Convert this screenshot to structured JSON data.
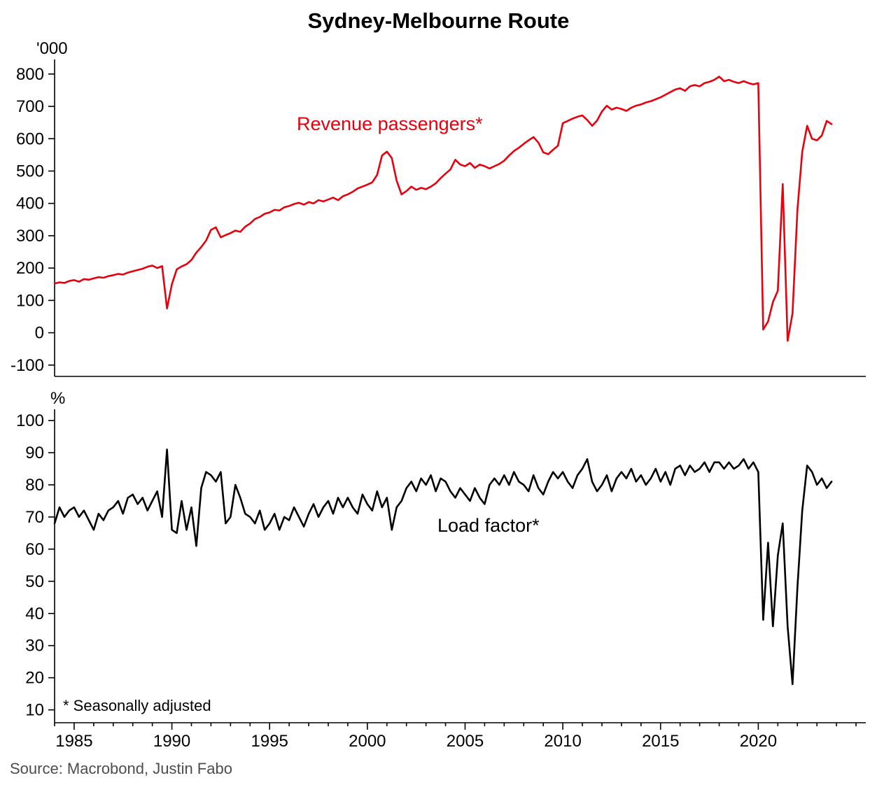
{
  "title": "Sydney-Melbourne Route",
  "footnote": "* Seasonally adjusted",
  "source": "Source: Macrobond, Justin Fabo",
  "colors": {
    "passengers_line": "#e8000d",
    "load_factor_line": "#000000",
    "axis": "#000000",
    "source_text": "#4d4d4d"
  },
  "x_axis": {
    "range": [
      1984,
      2025.5
    ],
    "major_ticks": [
      1985,
      1990,
      1995,
      2000,
      2005,
      2010,
      2015,
      2020
    ],
    "minor_tick_step": 1
  },
  "chart_data": [
    {
      "type": "line",
      "series_label": "Revenue passengers*",
      "ylabel": "'000",
      "color": "#e8000d",
      "ylim": [
        -100,
        800
      ],
      "yticks": [
        800,
        700,
        600,
        500,
        400,
        300,
        200,
        100,
        0,
        -100
      ],
      "x_start": 1984,
      "x_step": 0.25,
      "values": [
        152,
        156,
        154,
        160,
        163,
        158,
        166,
        164,
        168,
        172,
        170,
        175,
        178,
        182,
        180,
        186,
        190,
        194,
        198,
        204,
        208,
        200,
        206,
        75,
        150,
        196,
        205,
        212,
        225,
        248,
        265,
        285,
        318,
        326,
        295,
        302,
        308,
        316,
        312,
        328,
        338,
        352,
        358,
        368,
        372,
        380,
        378,
        388,
        392,
        398,
        402,
        396,
        404,
        400,
        410,
        406,
        412,
        418,
        410,
        422,
        428,
        436,
        446,
        452,
        458,
        465,
        488,
        548,
        560,
        540,
        470,
        428,
        438,
        452,
        442,
        448,
        444,
        452,
        462,
        478,
        492,
        505,
        535,
        520,
        515,
        525,
        510,
        520,
        515,
        508,
        515,
        522,
        532,
        548,
        562,
        572,
        584,
        595,
        605,
        588,
        558,
        552,
        566,
        578,
        648,
        655,
        662,
        668,
        672,
        658,
        640,
        656,
        684,
        702,
        690,
        696,
        692,
        686,
        696,
        702,
        706,
        712,
        716,
        722,
        728,
        736,
        744,
        752,
        756,
        748,
        762,
        766,
        762,
        772,
        776,
        782,
        792,
        778,
        782,
        776,
        772,
        778,
        772,
        768,
        772,
        10,
        35,
        95,
        130,
        460,
        -25,
        60,
        380,
        560,
        640,
        600,
        595,
        610,
        655,
        645
      ]
    },
    {
      "type": "line",
      "series_label": "Load factor*",
      "ylabel": "%",
      "color": "#000000",
      "ylim": [
        10,
        100
      ],
      "yticks": [
        100,
        90,
        80,
        70,
        60,
        50,
        40,
        30,
        20,
        10
      ],
      "x_start": 1984,
      "x_step": 0.25,
      "values": [
        68,
        73,
        70,
        72,
        73,
        70,
        72,
        69,
        66,
        71,
        69,
        72,
        73,
        75,
        71,
        76,
        77,
        74,
        76,
        72,
        75,
        78,
        70,
        91,
        66,
        65,
        75,
        66,
        73,
        61,
        79,
        84,
        83,
        81,
        84,
        68,
        70,
        80,
        76,
        71,
        70,
        68,
        72,
        66,
        68,
        71,
        66,
        70,
        69,
        73,
        70,
        67,
        71,
        74,
        70,
        73,
        75,
        71,
        76,
        73,
        76,
        73,
        71,
        77,
        74,
        72,
        78,
        73,
        76,
        66,
        73,
        75,
        79,
        81,
        78,
        82,
        80,
        83,
        78,
        82,
        81,
        78,
        76,
        79,
        77,
        75,
        79,
        76,
        74,
        80,
        82,
        80,
        83,
        80,
        84,
        81,
        80,
        78,
        83,
        79,
        77,
        81,
        84,
        82,
        84,
        81,
        79,
        83,
        85,
        88,
        81,
        78,
        80,
        83,
        78,
        82,
        84,
        82,
        85,
        81,
        83,
        80,
        82,
        85,
        81,
        84,
        80,
        85,
        86,
        83,
        86,
        84,
        85,
        87,
        84,
        87,
        87,
        85,
        87,
        85,
        86,
        88,
        85,
        87,
        84,
        38,
        62,
        36,
        58,
        68,
        36,
        18,
        48,
        72,
        86,
        84,
        80,
        82,
        79,
        81
      ]
    }
  ]
}
